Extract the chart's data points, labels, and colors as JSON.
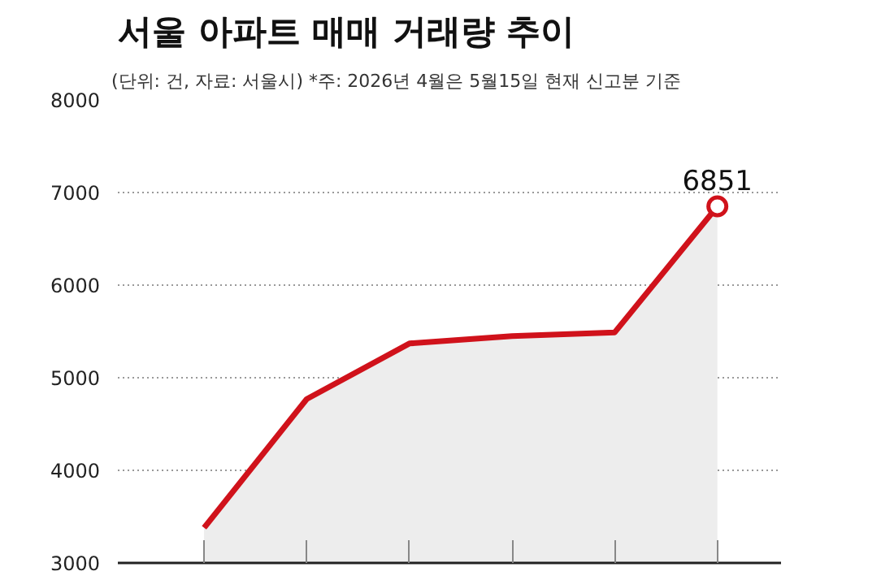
{
  "chart_data": {
    "type": "area",
    "title": "서울 아파트 매매 거래량 추이",
    "subtitle": "(단위: 건, 자료: 서울시)  *주: 2026년 4월은 5월15일 현재 신고분 기준",
    "categories": [
      null,
      null,
      null,
      null,
      null,
      null
    ],
    "series": [
      {
        "color": "#d0121b",
        "values": [
          3380,
          4770,
          5370,
          5450,
          5490,
          6851
        ],
        "value_labels": [
          null,
          null,
          null,
          null,
          null,
          "6851"
        ]
      }
    ],
    "ylim": [
      3000,
      8000
    ],
    "yticks": [
      3000,
      4000,
      5000,
      6000,
      7000,
      8000
    ],
    "grid": "y",
    "tick_labels": "y"
  }
}
